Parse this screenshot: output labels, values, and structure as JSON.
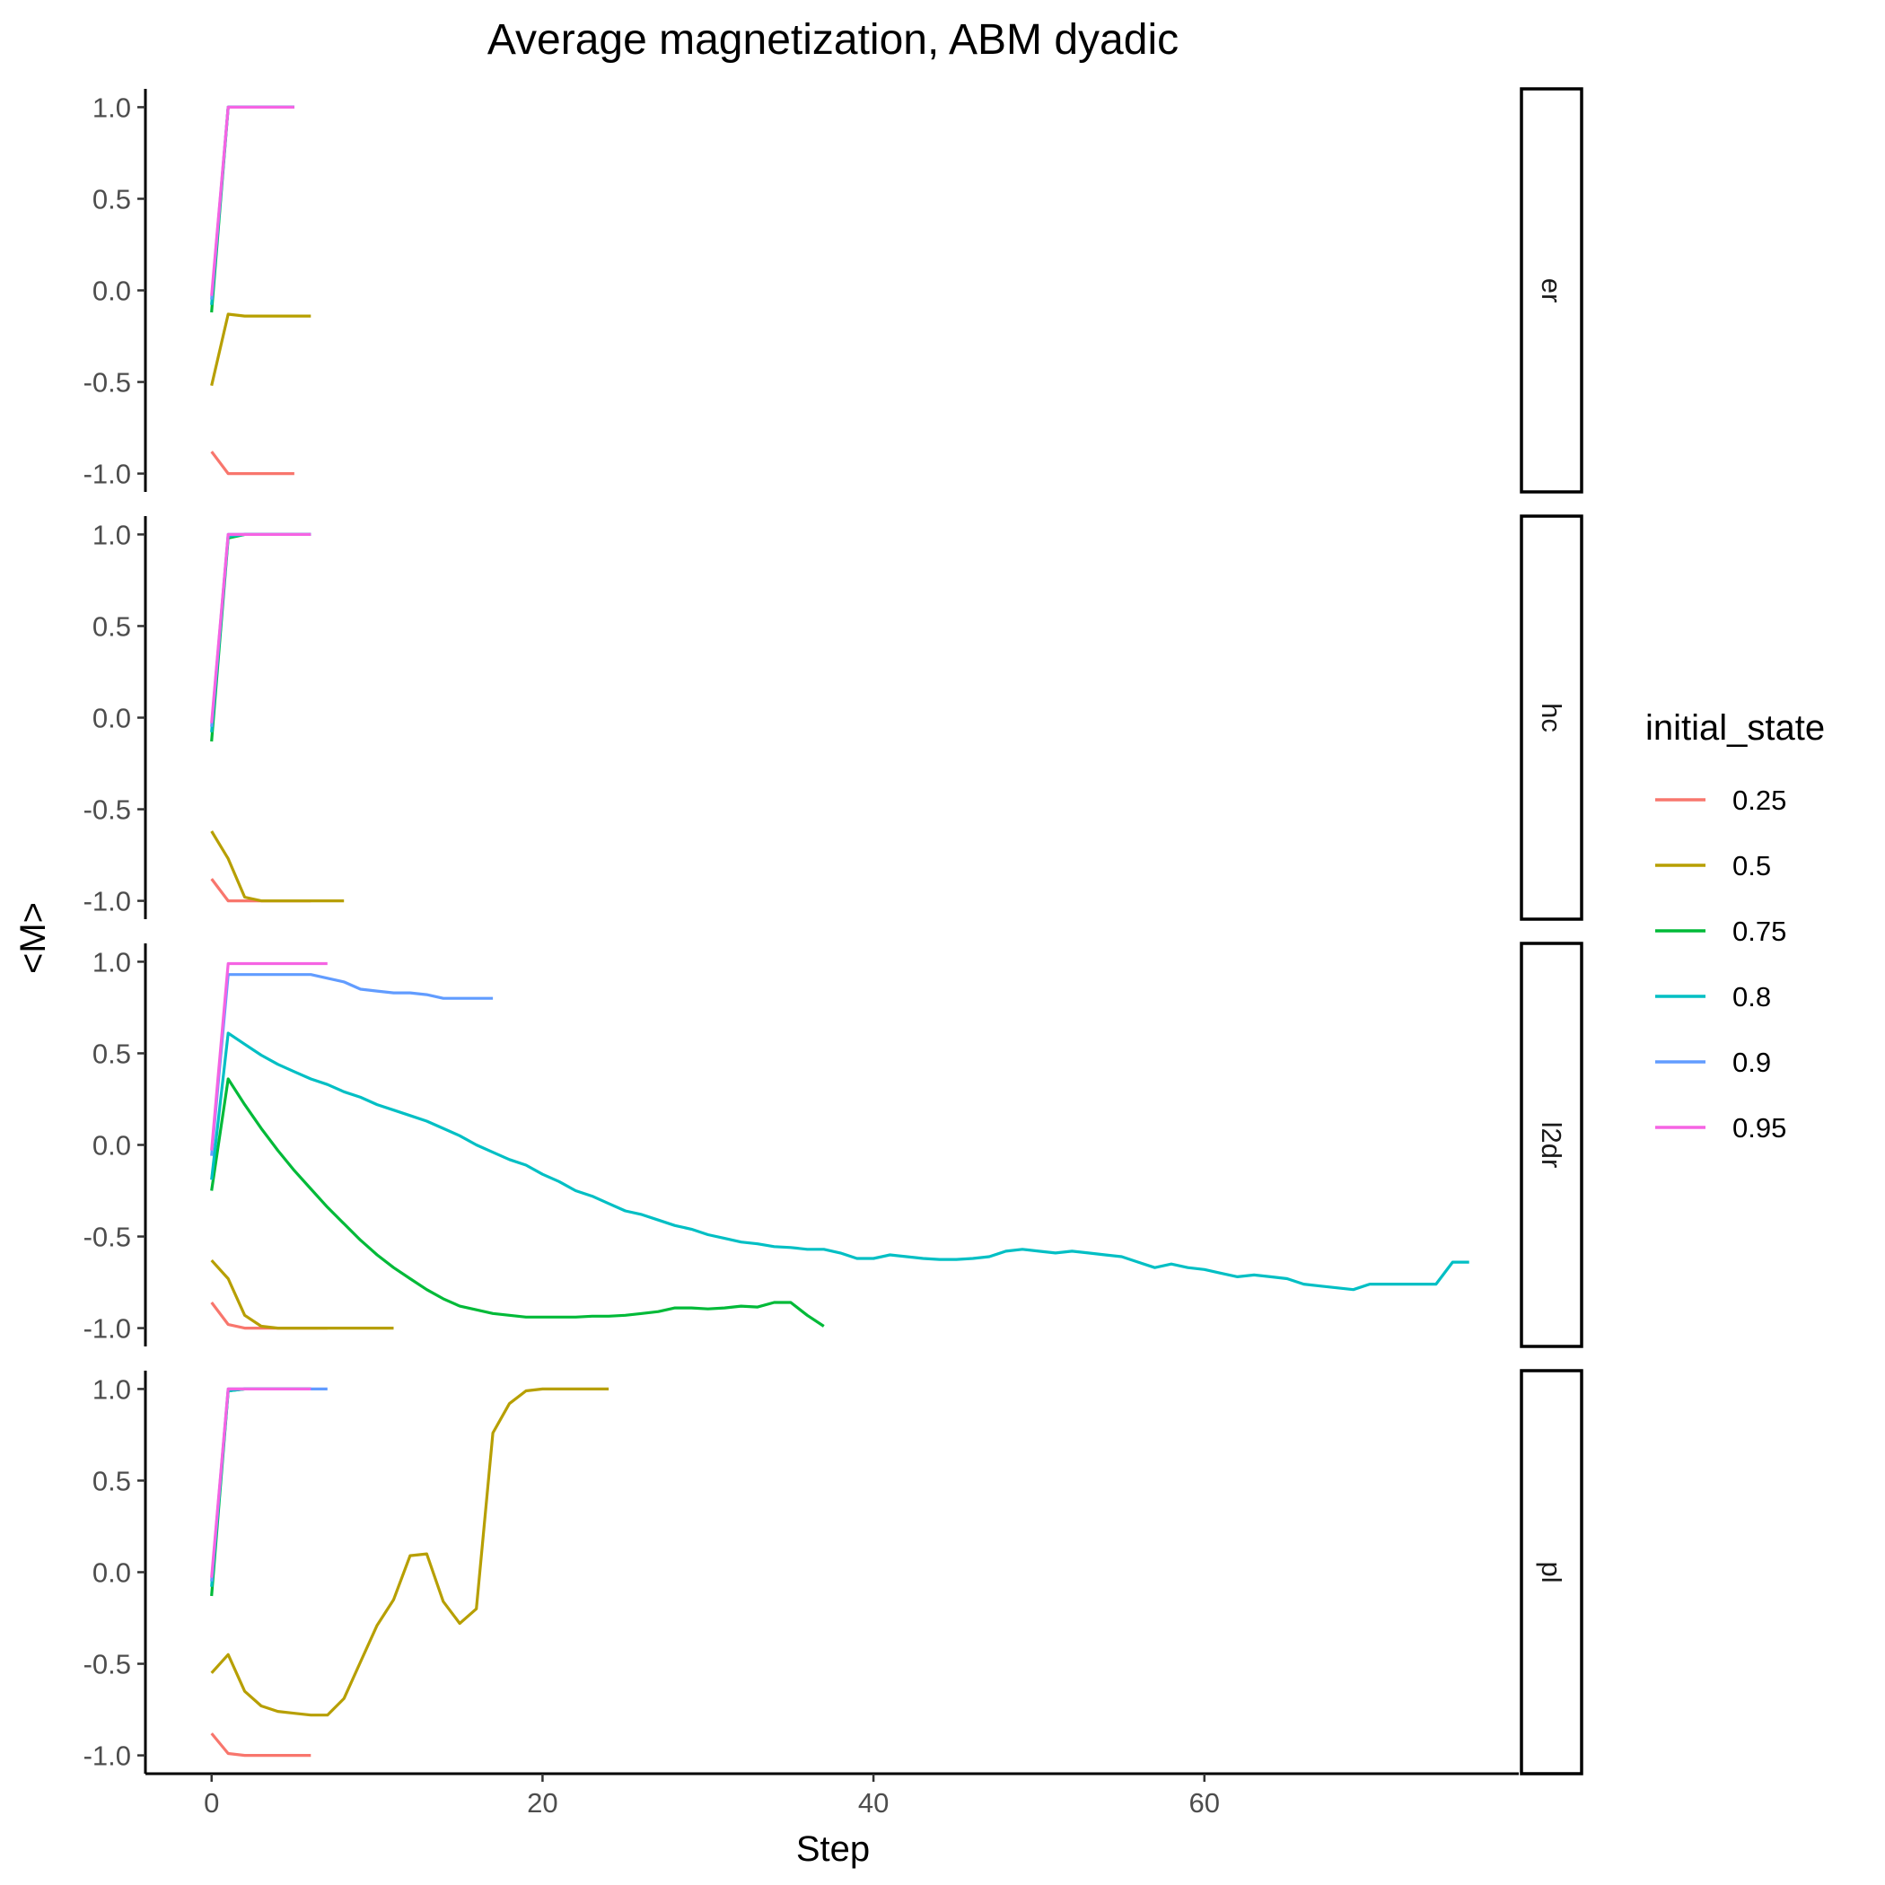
{
  "chart_data": {
    "type": "line",
    "title": "Average magnetization, ABM dyadic",
    "xlabel": "Step",
    "ylabel": "<M>",
    "xlim": [
      -4,
      79
    ],
    "ylim": [
      -1.1,
      1.1
    ],
    "x_ticks": [
      0,
      20,
      40,
      60
    ],
    "x_tick_labels": [
      "0",
      "20",
      "40",
      "60"
    ],
    "y_ticks": [
      1.0,
      0.5,
      0.0,
      -0.5,
      -1.0
    ],
    "y_tick_labels": [
      "1.0",
      "0.5",
      "0.0",
      "-0.5",
      "-1.0"
    ],
    "grid": false,
    "legend": {
      "title": "initial_state",
      "placement": "right",
      "entries": [
        {
          "label": "0.25",
          "color": "#F8766D"
        },
        {
          "label": "0.5",
          "color": "#B79F00"
        },
        {
          "label": "0.75",
          "color": "#00BA38"
        },
        {
          "label": "0.8",
          "color": "#00BFC4"
        },
        {
          "label": "0.9",
          "color": "#619CFF"
        },
        {
          "label": "0.95",
          "color": "#F564E3"
        }
      ]
    },
    "panels": [
      {
        "strip": "er",
        "series": [
          {
            "name": "0.25",
            "x": [
              0,
              1,
              2,
              3,
              4,
              5
            ],
            "y": [
              -0.88,
              -1.0,
              -1.0,
              -1.0,
              -1.0,
              -1.0
            ]
          },
          {
            "name": "0.5",
            "x": [
              0,
              1,
              2,
              3,
              4,
              5,
              6
            ],
            "y": [
              -0.52,
              -0.13,
              -0.14,
              -0.14,
              -0.14,
              -0.14,
              -0.14
            ]
          },
          {
            "name": "0.75",
            "x": [
              0,
              1,
              2,
              3,
              4,
              5
            ],
            "y": [
              -0.12,
              1.0,
              1.0,
              1.0,
              1.0,
              1.0
            ]
          },
          {
            "name": "0.8",
            "x": [
              0,
              1,
              2,
              3,
              4,
              5
            ],
            "y": [
              -0.08,
              1.0,
              1.0,
              1.0,
              1.0,
              1.0
            ]
          },
          {
            "name": "0.9",
            "x": [
              0,
              1,
              2,
              3,
              4,
              5
            ],
            "y": [
              -0.05,
              1.0,
              1.0,
              1.0,
              1.0,
              1.0
            ]
          },
          {
            "name": "0.95",
            "x": [
              0,
              1,
              2,
              3,
              4,
              5
            ],
            "y": [
              -0.03,
              1.0,
              1.0,
              1.0,
              1.0,
              1.0
            ]
          }
        ]
      },
      {
        "strip": "hc",
        "series": [
          {
            "name": "0.25",
            "x": [
              0,
              1,
              2,
              3,
              4,
              5,
              6
            ],
            "y": [
              -0.88,
              -1.0,
              -1.0,
              -1.0,
              -1.0,
              -1.0,
              -1.0
            ]
          },
          {
            "name": "0.5",
            "x": [
              0,
              1,
              2,
              3,
              4,
              5,
              6,
              7,
              8
            ],
            "y": [
              -0.62,
              -0.77,
              -0.98,
              -1.0,
              -1.0,
              -1.0,
              -1.0,
              -1.0,
              -1.0
            ]
          },
          {
            "name": "0.75",
            "x": [
              0,
              1,
              2,
              3,
              4,
              5,
              6
            ],
            "y": [
              -0.13,
              0.98,
              1.0,
              1.0,
              1.0,
              1.0,
              1.0
            ]
          },
          {
            "name": "0.8",
            "x": [
              0,
              1,
              2,
              3,
              4,
              5,
              6
            ],
            "y": [
              -0.08,
              0.99,
              1.0,
              1.0,
              1.0,
              1.0,
              1.0
            ]
          },
          {
            "name": "0.9",
            "x": [
              0,
              1,
              2,
              3,
              4,
              5,
              6
            ],
            "y": [
              -0.05,
              1.0,
              1.0,
              1.0,
              1.0,
              1.0,
              1.0
            ]
          },
          {
            "name": "0.95",
            "x": [
              0,
              1,
              2,
              3,
              4,
              5,
              6
            ],
            "y": [
              -0.03,
              1.0,
              1.0,
              1.0,
              1.0,
              1.0,
              1.0
            ]
          }
        ]
      },
      {
        "strip": "l2dr",
        "series": [
          {
            "name": "0.25",
            "x": [
              0,
              1,
              2,
              3,
              4,
              5,
              6,
              7
            ],
            "y": [
              -0.86,
              -0.98,
              -1.0,
              -1.0,
              -1.0,
              -1.0,
              -1.0,
              -1.0
            ]
          },
          {
            "name": "0.5",
            "x": [
              0,
              1,
              2,
              3,
              4,
              5,
              6,
              7,
              8,
              9,
              10,
              11
            ],
            "y": [
              -0.63,
              -0.73,
              -0.93,
              -0.99,
              -1.0,
              -1.0,
              -1.0,
              -1.0,
              -1.0,
              -1.0,
              -1.0,
              -1.0
            ]
          },
          {
            "name": "0.75",
            "x": [
              0,
              1,
              2,
              3,
              4,
              5,
              6,
              7,
              8,
              9,
              10,
              11,
              12,
              13,
              14,
              15,
              16,
              17,
              18,
              19,
              20,
              21,
              22,
              23,
              24,
              25,
              26,
              27,
              28,
              29,
              30,
              31,
              32,
              33,
              34,
              35,
              36,
              37
            ],
            "y": [
              -0.25,
              0.36,
              0.22,
              0.09,
              -0.03,
              -0.14,
              -0.24,
              -0.34,
              -0.43,
              -0.52,
              -0.6,
              -0.67,
              -0.73,
              -0.79,
              -0.84,
              -0.88,
              -0.9,
              -0.92,
              -0.93,
              -0.94,
              -0.94,
              -0.94,
              -0.94,
              -0.935,
              -0.935,
              -0.93,
              -0.92,
              -0.91,
              -0.89,
              -0.89,
              -0.895,
              -0.89,
              -0.88,
              -0.885,
              -0.86,
              -0.86,
              -0.93,
              -0.99
            ]
          },
          {
            "name": "0.8",
            "x": [
              0,
              1,
              2,
              3,
              4,
              5,
              6,
              7,
              8,
              9,
              10,
              11,
              12,
              13,
              14,
              15,
              16,
              17,
              18,
              19,
              20,
              21,
              22,
              23,
              24,
              25,
              26,
              27,
              28,
              29,
              30,
              31,
              32,
              33,
              34,
              35,
              36,
              37,
              38,
              39,
              40,
              41,
              42,
              43,
              44,
              45,
              46,
              47,
              48,
              49,
              50,
              51,
              52,
              53,
              54,
              55,
              56,
              57,
              58,
              59,
              60,
              61,
              62,
              63,
              64,
              65,
              66,
              67,
              68,
              69,
              70,
              71,
              72,
              73,
              74,
              75,
              76
            ],
            "y": [
              -0.19,
              0.61,
              0.55,
              0.49,
              0.44,
              0.4,
              0.36,
              0.33,
              0.29,
              0.26,
              0.22,
              0.19,
              0.16,
              0.13,
              0.09,
              0.05,
              0.0,
              -0.04,
              -0.08,
              -0.11,
              -0.16,
              -0.2,
              -0.25,
              -0.28,
              -0.32,
              -0.36,
              -0.38,
              -0.41,
              -0.44,
              -0.46,
              -0.49,
              -0.51,
              -0.53,
              -0.54,
              -0.555,
              -0.56,
              -0.57,
              -0.57,
              -0.59,
              -0.62,
              -0.62,
              -0.6,
              -0.61,
              -0.62,
              -0.625,
              -0.625,
              -0.62,
              -0.61,
              -0.58,
              -0.57,
              -0.58,
              -0.59,
              -0.58,
              -0.59,
              -0.6,
              -0.61,
              -0.64,
              -0.67,
              -0.65,
              -0.67,
              -0.68,
              -0.7,
              -0.72,
              -0.71,
              -0.72,
              -0.73,
              -0.76,
              -0.77,
              -0.78,
              -0.79,
              -0.76,
              -0.76,
              -0.76,
              -0.76,
              -0.76,
              -0.64,
              -0.64
            ]
          },
          {
            "name": "0.9",
            "x": [
              0,
              1,
              2,
              3,
              4,
              5,
              6,
              7,
              8,
              9,
              10,
              11,
              12,
              13,
              14,
              15,
              16,
              17
            ],
            "y": [
              -0.06,
              0.93,
              0.93,
              0.93,
              0.93,
              0.93,
              0.93,
              0.91,
              0.89,
              0.85,
              0.84,
              0.83,
              0.83,
              0.82,
              0.8,
              0.8,
              0.8,
              0.8
            ]
          },
          {
            "name": "0.95",
            "x": [
              0,
              1,
              2,
              3,
              4,
              5,
              6,
              7
            ],
            "y": [
              -0.03,
              0.99,
              0.99,
              0.99,
              0.99,
              0.99,
              0.99,
              0.99
            ]
          }
        ]
      },
      {
        "strip": "pl",
        "series": [
          {
            "name": "0.25",
            "x": [
              0,
              1,
              2,
              3,
              4,
              5,
              6
            ],
            "y": [
              -0.88,
              -0.99,
              -1.0,
              -1.0,
              -1.0,
              -1.0,
              -1.0
            ]
          },
          {
            "name": "0.5",
            "x": [
              0,
              1,
              2,
              3,
              4,
              5,
              6,
              7,
              8,
              9,
              10,
              11,
              12,
              13,
              14,
              15,
              16,
              17,
              18,
              19,
              20,
              21,
              22,
              23,
              24
            ],
            "y": [
              -0.55,
              -0.45,
              -0.65,
              -0.73,
              -0.76,
              -0.77,
              -0.78,
              -0.78,
              -0.69,
              -0.49,
              -0.29,
              -0.15,
              0.09,
              0.1,
              -0.16,
              -0.28,
              -0.2,
              0.76,
              0.92,
              0.99,
              1.0,
              1.0,
              1.0,
              1.0,
              1.0
            ]
          },
          {
            "name": "0.75",
            "x": [
              0,
              1,
              2,
              3,
              4,
              5,
              6
            ],
            "y": [
              -0.13,
              0.99,
              1.0,
              1.0,
              1.0,
              1.0,
              1.0
            ]
          },
          {
            "name": "0.8",
            "x": [
              0,
              1,
              2,
              3,
              4,
              5,
              6
            ],
            "y": [
              -0.08,
              0.99,
              1.0,
              1.0,
              1.0,
              1.0,
              1.0
            ]
          },
          {
            "name": "0.9",
            "x": [
              0,
              1,
              2,
              3,
              4,
              5,
              6,
              7
            ],
            "y": [
              -0.05,
              1.0,
              1.0,
              1.0,
              1.0,
              1.0,
              1.0,
              1.0
            ]
          },
          {
            "name": "0.95",
            "x": [
              0,
              1,
              2,
              3,
              4,
              5,
              6
            ],
            "y": [
              -0.03,
              1.0,
              1.0,
              1.0,
              1.0,
              1.0,
              1.0
            ]
          }
        ]
      }
    ]
  }
}
